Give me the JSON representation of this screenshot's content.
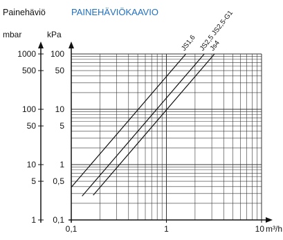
{
  "header": {
    "left_label": "Painehäviö",
    "title": "PAINEHÄVIÖKAAVIO"
  },
  "colors": {
    "title": "#1f6fbf",
    "text": "#111111",
    "grid": "#333333"
  },
  "chart_data": {
    "type": "line",
    "title": "PAINEHÄVIÖKAAVIO",
    "xscale": "log",
    "yscale": "log",
    "grid": true,
    "xlim": [
      0.1,
      10
    ],
    "ylim": [
      0.1,
      100
    ],
    "xlabel": "m³/h",
    "y_units": [
      "mbar",
      "kPa"
    ],
    "x_ticks": [
      "0,1",
      "1",
      "10"
    ],
    "y_ticks_kpa": [
      "100",
      "50",
      "10",
      "5",
      "1",
      "0,5",
      "0,1"
    ],
    "y_ticks_mbar": [
      "1000",
      "500",
      "100",
      "50",
      "10",
      "5",
      "1"
    ],
    "y_tick_values": [
      100,
      50,
      10,
      5,
      1,
      0.5,
      0.1
    ],
    "series": [
      {
        "name": "JS1,6",
        "x": [
          0.1,
          1.6
        ],
        "y": [
          0.39,
          100
        ]
      },
      {
        "name": "JS2,5 JS2,5-G1",
        "x": [
          0.13,
          2.5
        ],
        "y": [
          0.27,
          100
        ]
      },
      {
        "name": "Js4",
        "x": [
          0.17,
          3.2
        ],
        "y": [
          0.28,
          100
        ]
      }
    ]
  }
}
